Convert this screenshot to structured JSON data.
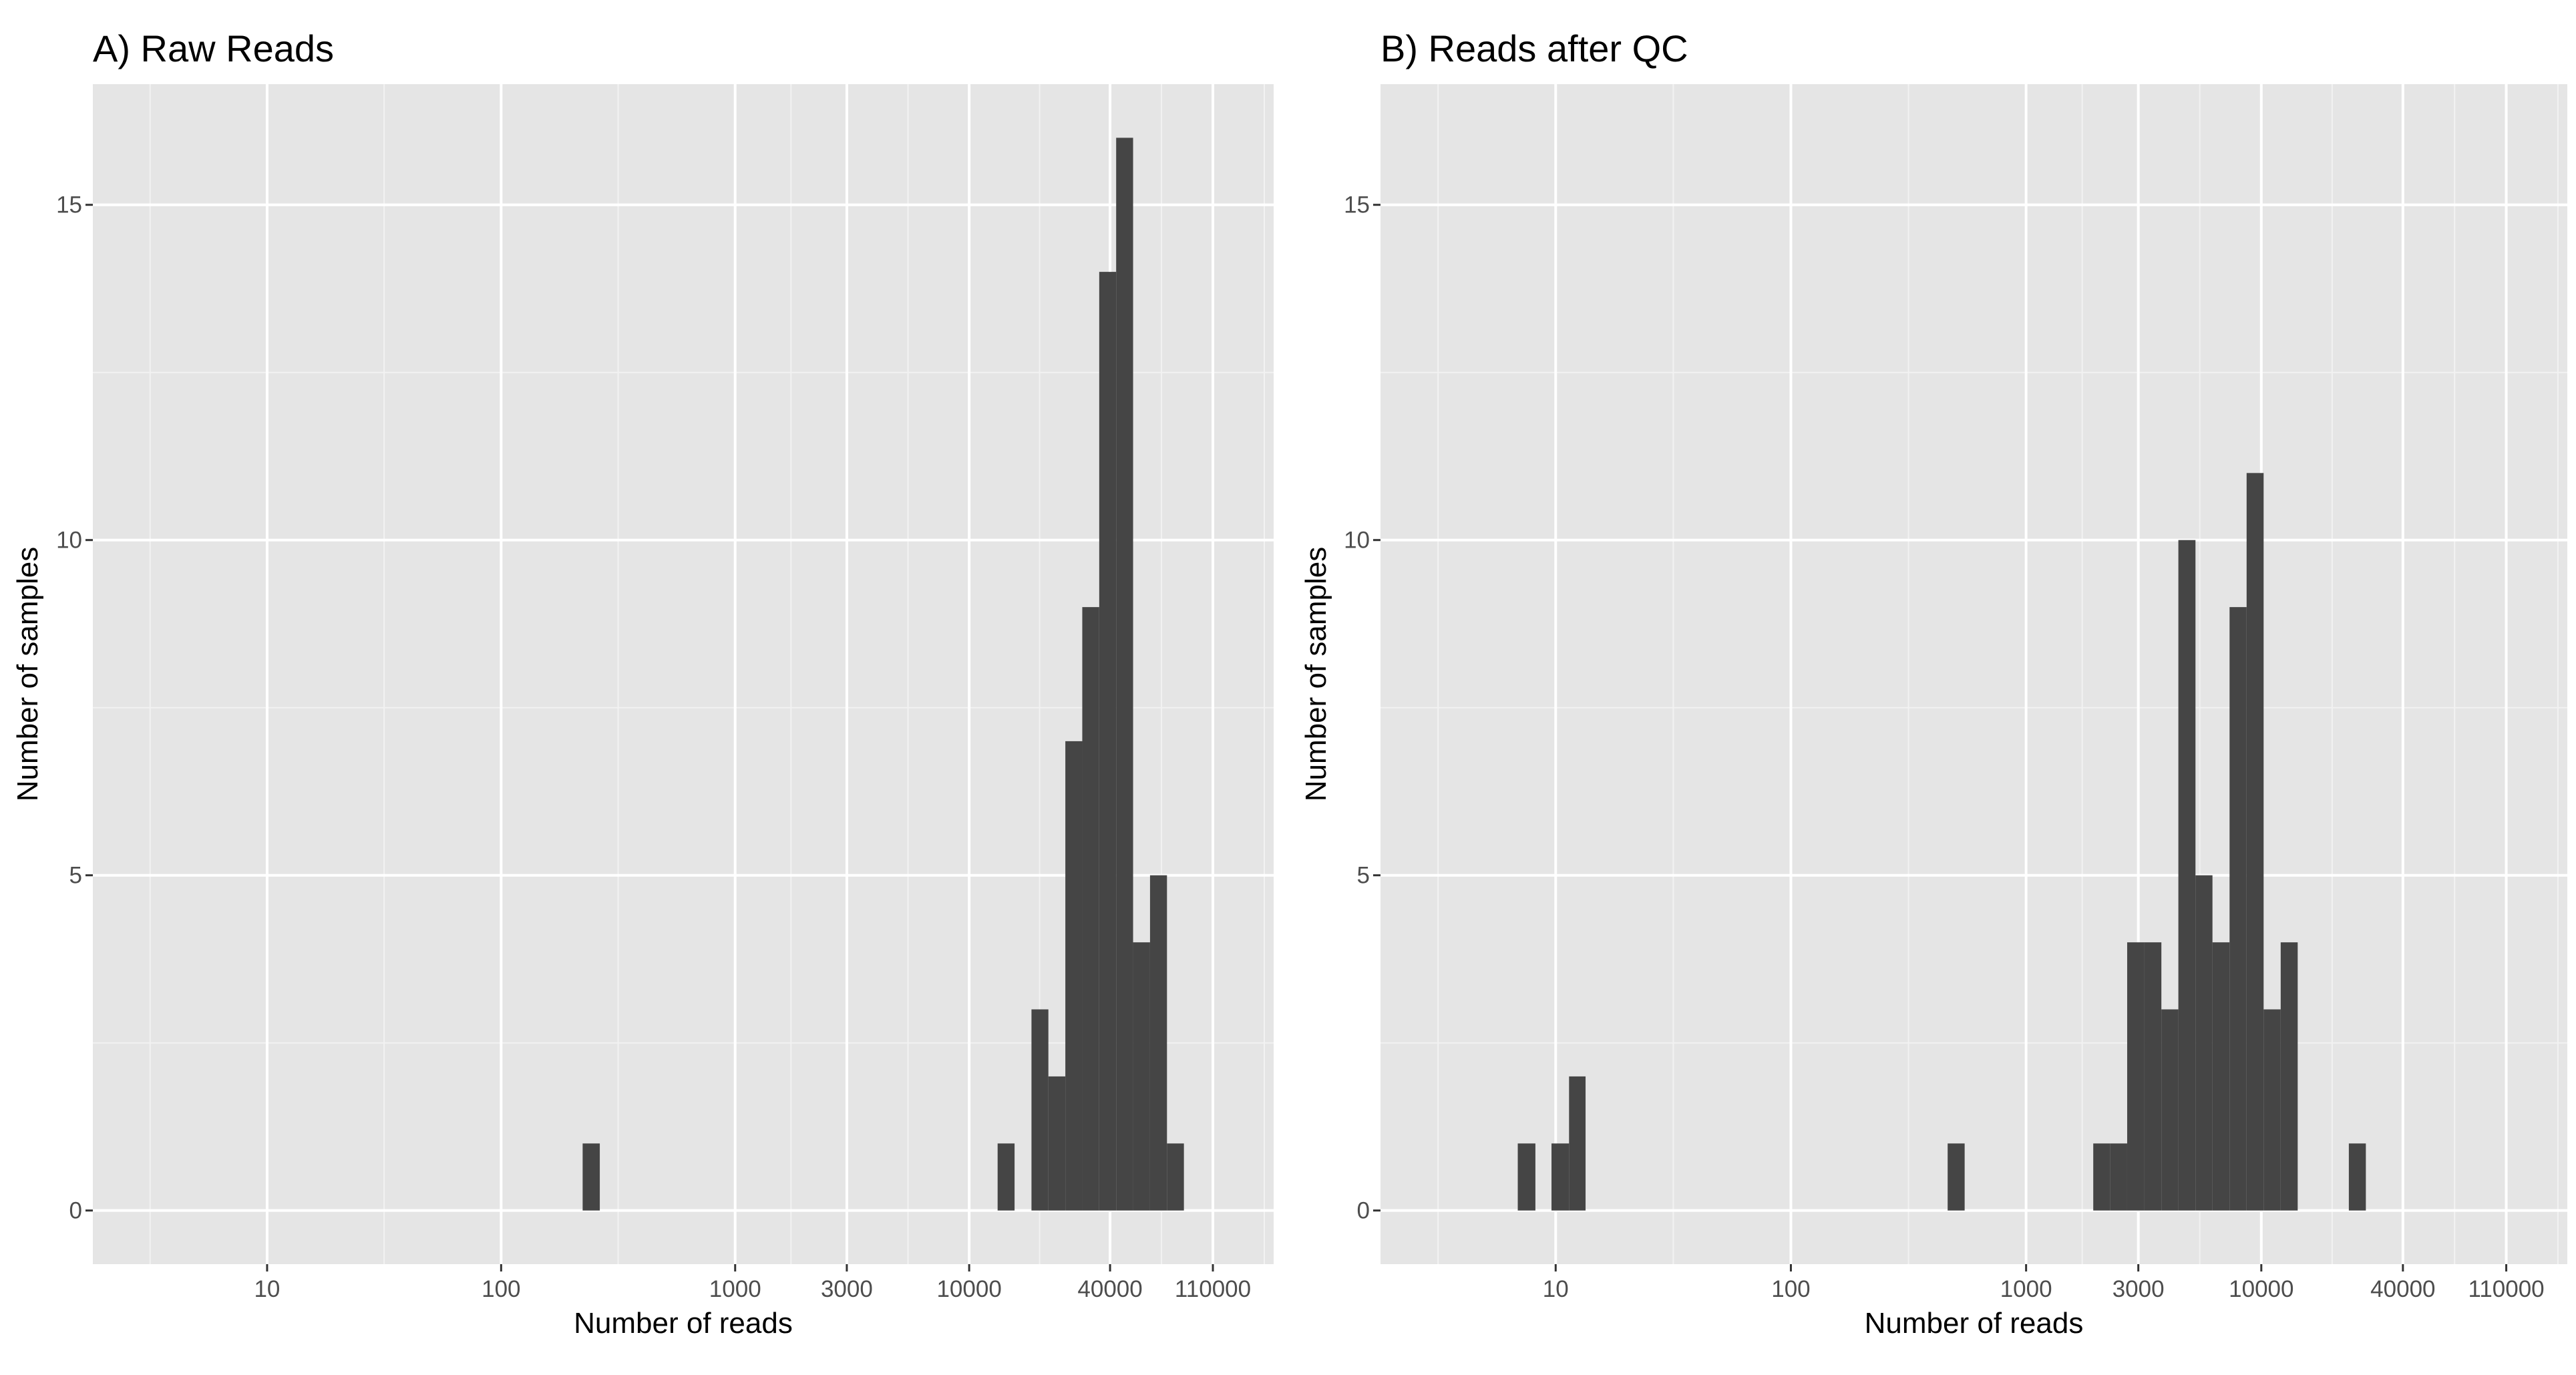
{
  "chart_data": [
    {
      "type": "bar",
      "subtype": "histogram",
      "title": "A) Raw Reads",
      "xlabel": "Number of reads",
      "ylabel": "Number of samples",
      "x_scale": "log10",
      "xlim": [
        1.8,
        200000
      ],
      "ylim": [
        -0.8,
        16.8
      ],
      "x_ticks": [
        10,
        100,
        1000,
        3000,
        10000,
        40000,
        110000
      ],
      "y_ticks": [
        0,
        5,
        10,
        15
      ],
      "grid": true,
      "bins": [
        {
          "x0": 223,
          "x1": 264,
          "count": 1
        },
        {
          "x0": 13230,
          "x1": 15630,
          "count": 1
        },
        {
          "x0": 18460,
          "x1": 21800,
          "count": 3
        },
        {
          "x0": 21800,
          "x1": 25760,
          "count": 2
        },
        {
          "x0": 25760,
          "x1": 30430,
          "count": 7
        },
        {
          "x0": 30430,
          "x1": 35950,
          "count": 9
        },
        {
          "x0": 35950,
          "x1": 42470,
          "count": 14
        },
        {
          "x0": 42470,
          "x1": 50170,
          "count": 16
        },
        {
          "x0": 50170,
          "x1": 59270,
          "count": 4
        },
        {
          "x0": 59270,
          "x1": 70020,
          "count": 5
        },
        {
          "x0": 70020,
          "x1": 82720,
          "count": 1
        }
      ]
    },
    {
      "type": "bar",
      "subtype": "histogram",
      "title": "B) Reads after QC",
      "xlabel": "Number of reads",
      "ylabel": "Number of samples",
      "x_scale": "log10",
      "xlim": [
        1.8,
        200000
      ],
      "ylim": [
        -0.8,
        16.8
      ],
      "x_ticks": [
        10,
        100,
        1000,
        3000,
        10000,
        40000,
        110000
      ],
      "y_ticks": [
        0,
        5,
        10,
        15
      ],
      "grid": true,
      "bins": [
        {
          "x0": 6.9,
          "x1": 8.2,
          "count": 1
        },
        {
          "x0": 9.6,
          "x1": 11.4,
          "count": 1
        },
        {
          "x0": 11.4,
          "x1": 13.4,
          "count": 2
        },
        {
          "x0": 464,
          "x1": 548,
          "count": 1
        },
        {
          "x0": 1930,
          "x1": 2280,
          "count": 1
        },
        {
          "x0": 2280,
          "x1": 2690,
          "count": 1
        },
        {
          "x0": 2690,
          "x1": 3180,
          "count": 4
        },
        {
          "x0": 3180,
          "x1": 3760,
          "count": 4
        },
        {
          "x0": 3760,
          "x1": 4440,
          "count": 3
        },
        {
          "x0": 4440,
          "x1": 5250,
          "count": 10
        },
        {
          "x0": 5250,
          "x1": 6200,
          "count": 5
        },
        {
          "x0": 6200,
          "x1": 7330,
          "count": 4
        },
        {
          "x0": 7330,
          "x1": 8660,
          "count": 9
        },
        {
          "x0": 8660,
          "x1": 10230,
          "count": 11
        },
        {
          "x0": 10230,
          "x1": 12090,
          "count": 3
        },
        {
          "x0": 12090,
          "x1": 14280,
          "count": 4
        },
        {
          "x0": 23560,
          "x1": 27830,
          "count": 1
        }
      ]
    }
  ]
}
